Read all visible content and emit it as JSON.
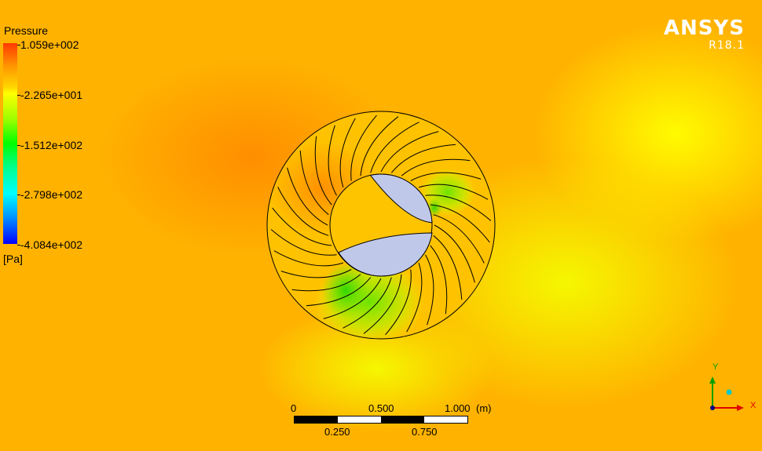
{
  "legend": {
    "title": "Pressure",
    "ticks": [
      {
        "label": "1.059e+002"
      },
      {
        "label": "-2.265e+001"
      },
      {
        "label": "-1.512e+002"
      },
      {
        "label": "-2.798e+002"
      },
      {
        "label": "-4.084e+002"
      }
    ],
    "unit": "[Pa]"
  },
  "brand": {
    "name": "ANSYS",
    "version": "R18.1"
  },
  "scale_bar": {
    "top_labels": [
      "0",
      "0.500",
      "1.000",
      "(m)"
    ],
    "bottom_labels": [
      "0.250",
      "0.750"
    ]
  },
  "triad": {
    "x_label": "X",
    "y_label": "Y"
  },
  "colors": {
    "background": "#ffb400",
    "high_pressure": "#ff7a00",
    "low_pressure": "#6ee000",
    "hub": "#c0c8ea"
  }
}
